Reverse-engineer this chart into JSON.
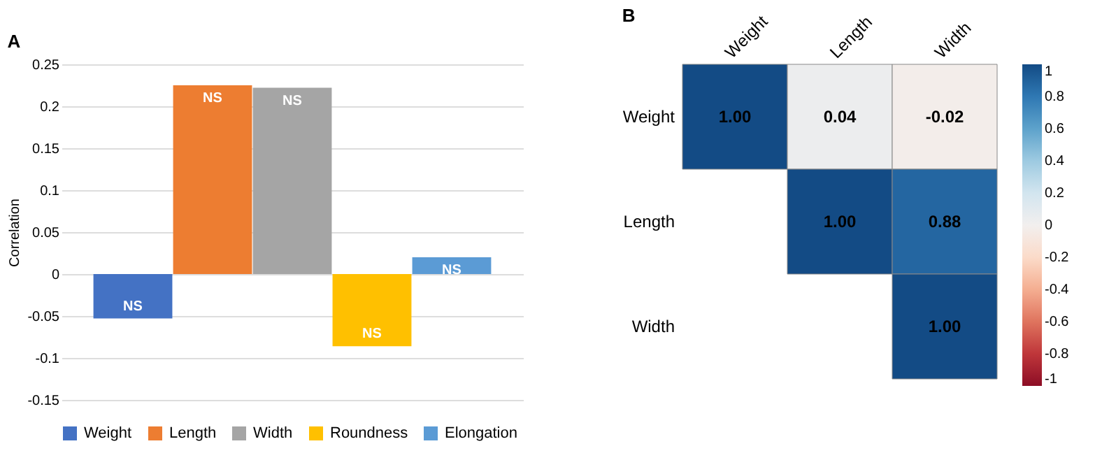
{
  "chart_data": [
    {
      "type": "bar",
      "title": "A",
      "ylabel": "Correlation",
      "categories": [
        null
      ],
      "series": [
        {
          "name": "Weight",
          "color": "#4472c4",
          "values": [
            -0.053
          ],
          "value_labels": [
            "NS"
          ]
        },
        {
          "name": "Length",
          "color": "#ed7d31",
          "values": [
            0.225
          ],
          "value_labels": [
            "NS"
          ]
        },
        {
          "name": "Width",
          "color": "#a5a5a5",
          "values": [
            0.222
          ],
          "value_labels": [
            "NS"
          ]
        },
        {
          "name": "Roundness",
          "color": "#ffc000",
          "values": [
            -0.086
          ],
          "value_labels": [
            "NS"
          ]
        },
        {
          "name": "Elongation",
          "color": "#5b9bd5",
          "values": [
            0.02
          ],
          "value_labels": [
            "NS"
          ]
        }
      ],
      "ylim": [
        -0.15,
        0.25
      ],
      "yticks": [
        -0.15,
        -0.1,
        -0.05,
        0,
        0.05,
        0.1,
        0.15,
        0.2,
        0.25
      ],
      "grid": "y",
      "legend": "bottom"
    },
    {
      "type": "heatmap",
      "title": "B",
      "categories": [
        "Weight",
        "Length",
        "Width"
      ],
      "y_categories": [
        "Weight",
        "Length",
        "Width"
      ],
      "cells": [
        [
          1.0,
          0.04,
          -0.02
        ],
        [
          null,
          1.0,
          0.88
        ],
        [
          null,
          null,
          1.0
        ]
      ],
      "cell_labels": [
        [
          "1.00",
          "0.04",
          "-0.02"
        ],
        [
          null,
          "1.00",
          "0.88"
        ],
        [
          null,
          null,
          "1.00"
        ]
      ],
      "clim": [
        -1,
        1
      ],
      "cticks": [
        -1,
        -0.8,
        -0.6,
        -0.4,
        -0.2,
        0,
        0.2,
        0.4,
        0.6,
        0.8,
        1
      ]
    }
  ]
}
